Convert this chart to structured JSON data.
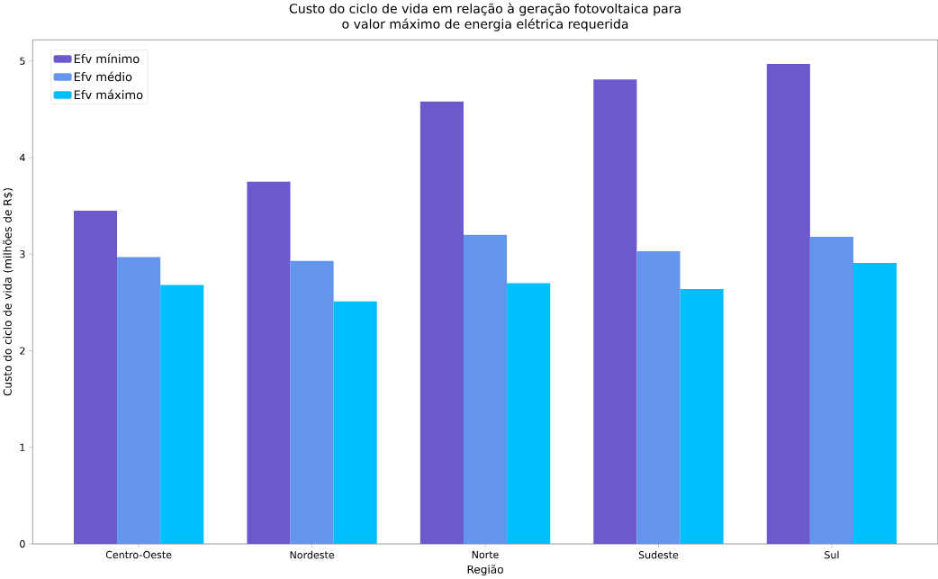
{
  "chart_data": {
    "type": "bar",
    "title": "Custo do ciclo de vida em relação à geração fotovoltaica para\no valor máximo de energia elétrica requerida",
    "xlabel": "Região",
    "ylabel": "Custo do ciclo de vida (milhões de R$)",
    "categories": [
      "Centro-Oeste",
      "Nordeste",
      "Norte",
      "Sudeste",
      "Sul"
    ],
    "series": [
      {
        "name": "Efv mínimo",
        "color": "#6a5acd",
        "values": [
          3.45,
          3.75,
          4.58,
          4.81,
          4.97
        ]
      },
      {
        "name": "Efv médio",
        "color": "#6495ed",
        "values": [
          2.97,
          2.93,
          3.2,
          3.03,
          3.18
        ]
      },
      {
        "name": "Efv máximo",
        "color": "#00bfff",
        "values": [
          2.68,
          2.51,
          2.7,
          2.64,
          2.91
        ]
      }
    ],
    "ylim": [
      0,
      5.22
    ],
    "yticks": [
      0,
      1,
      2,
      3,
      4,
      5
    ],
    "grid": false,
    "legend": "top left"
  }
}
